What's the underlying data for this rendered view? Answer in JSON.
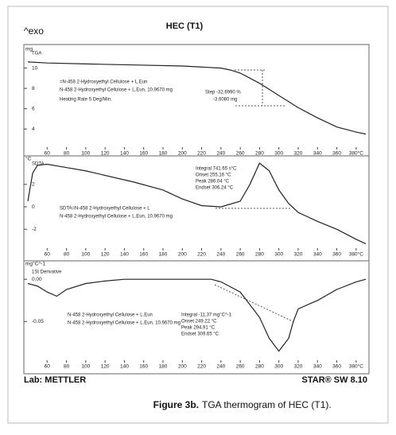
{
  "header": {
    "exo": "^exo",
    "title": "HEC (T1)"
  },
  "chart_data": [
    {
      "type": "line",
      "y_unit": "mg",
      "xlim": [
        40,
        390
      ],
      "ylim": [
        3,
        12
      ],
      "xticks": [
        60,
        80,
        100,
        120,
        140,
        160,
        180,
        200,
        220,
        240,
        260,
        280,
        300,
        320,
        340,
        360,
        {
          "value": 380,
          "label": "380°C"
        }
      ],
      "yticks": [
        4,
        6,
        8,
        10
      ],
      "annotations": [
        "TGA",
        "=N-458 2-Hydroxyethyl Cellulose + L.Eun",
        "N-458 2-Hydroxyethyl Cellulose + L.Eun, 10.9670 mg",
        "Heating Rate 5 Deg/Min.",
        "Step -32.6990 %",
        "-3.6080 mg"
      ],
      "series": [
        {
          "color": "#222222",
          "x": [
            40,
            60,
            100,
            150,
            200,
            240,
            250,
            260,
            270,
            280,
            290,
            300,
            310,
            320,
            340,
            360,
            380,
            390
          ],
          "values": [
            10.6,
            10.5,
            10.4,
            10.3,
            10.2,
            10.0,
            9.8,
            9.5,
            9.0,
            8.5,
            7.9,
            7.3,
            6.7,
            6.1,
            5.1,
            4.2,
            3.7,
            3.5
          ]
        }
      ]
    },
    {
      "type": "line",
      "y_unit": "°C",
      "xlim": [
        40,
        390
      ],
      "ylim": [
        -3.4,
        4.4
      ],
      "xticks": [
        60,
        80,
        100,
        120,
        140,
        160,
        180,
        200,
        220,
        240,
        260,
        280,
        300,
        320,
        340,
        360,
        {
          "value": 380,
          "label": "380°C"
        }
      ],
      "yticks": [
        2,
        0,
        -2
      ],
      "annotations": [
        "SDTA",
        "Integral 741.65 s°C",
        "Onset 255.16 °C",
        "Peak 286.04 °C",
        "Endset 306.24 °C",
        "SDTA=N-458 2-Hydroxyethyl Cellulose + L",
        "N-458 2-Hydroxyethyl Cellulose + L.Eun, 10.9670 mg"
      ],
      "series": [
        {
          "color": "#222222",
          "x": [
            40,
            45,
            50,
            60,
            80,
            100,
            150,
            180,
            200,
            220,
            240,
            260,
            270,
            280,
            290,
            300,
            310,
            320,
            340,
            360,
            380,
            390
          ],
          "values": [
            0.5,
            3.0,
            3.7,
            3.8,
            3.5,
            3.2,
            2.2,
            1.5,
            0.7,
            0.1,
            0,
            0.5,
            2.0,
            3.9,
            3.2,
            1.5,
            0.3,
            -0.5,
            -1.3,
            -2.0,
            -2.9,
            -3.3
          ]
        }
      ]
    },
    {
      "type": "line",
      "y_unit": "mg°C^-1",
      "xlim": [
        40,
        390
      ],
      "ylim": [
        -0.093,
        0.02
      ],
      "xticks": [
        60,
        80,
        100,
        120,
        140,
        160,
        180,
        200,
        220,
        240,
        260,
        280,
        300,
        320,
        340,
        360,
        {
          "value": 380,
          "label": "380°C"
        }
      ],
      "yticks": [
        {
          "value": 0,
          "label": "0.00"
        },
        -0.05
      ],
      "annotations": [
        "1St Derivative",
        "Integral -11.37 mg°C^-1",
        "Onset 249.22 °C",
        "Peak 294.91 °C",
        "Endset 309.65 °C",
        "N-458 2-Hydroxyethyl Cellulose + L.Eun",
        "N-458 2-Hydroxyethyl Cellulose + L.Eun, 10.9670 mg"
      ],
      "series": [
        {
          "color": "#222222",
          "x": [
            40,
            50,
            60,
            70,
            80,
            100,
            120,
            140,
            200,
            230,
            240,
            260,
            280,
            290,
            300,
            310,
            315,
            320,
            340,
            360,
            380,
            390
          ],
          "values": [
            -0.005,
            -0.008,
            -0.015,
            -0.02,
            -0.012,
            -0.005,
            -0.002,
            0,
            0,
            0,
            -0.003,
            -0.015,
            -0.045,
            -0.07,
            -0.085,
            -0.07,
            -0.05,
            -0.035,
            -0.025,
            -0.012,
            -0.003,
            0
          ]
        }
      ]
    }
  ],
  "footer": {
    "lab": "Lab: METTLER",
    "software": "STAR® SW 8.10"
  },
  "caption": {
    "label": "Figure 3b.",
    "text": "TGA thermogram of HEC (T1)."
  }
}
